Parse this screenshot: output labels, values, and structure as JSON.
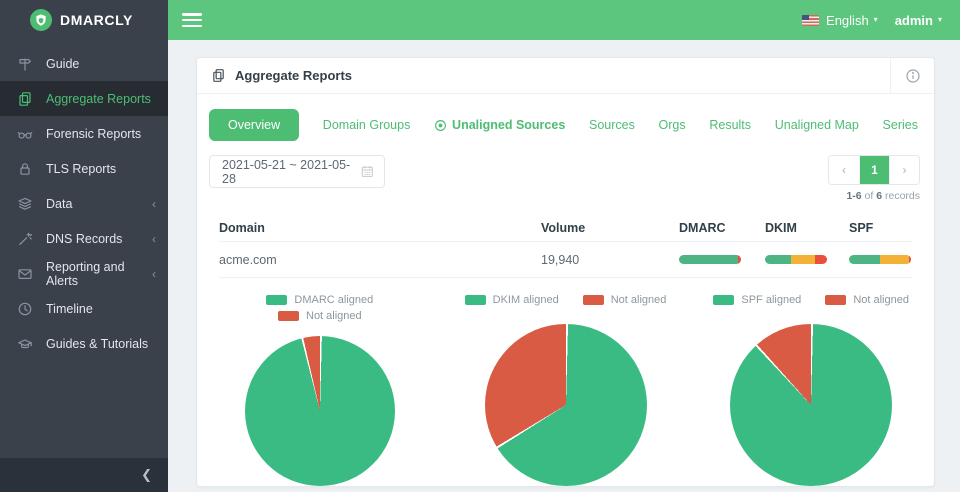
{
  "brand": {
    "name": "DMARCLY"
  },
  "topbar": {
    "language": "English",
    "user": "admin"
  },
  "icons": {
    "caret_down": "▾",
    "chevron_left": "‹",
    "chevron_right": "›",
    "collapse": "❮"
  },
  "sidebar": {
    "items": [
      {
        "label": "Guide"
      },
      {
        "label": "Aggregate Reports",
        "active": true
      },
      {
        "label": "Forensic Reports"
      },
      {
        "label": "TLS Reports"
      },
      {
        "label": "Data",
        "expandable": true
      },
      {
        "label": "DNS Records",
        "expandable": true
      },
      {
        "label": "Reporting and Alerts",
        "expandable": true
      },
      {
        "label": "Timeline"
      },
      {
        "label": "Guides & Tutorials"
      }
    ]
  },
  "card": {
    "title": "Aggregate Reports"
  },
  "tabs": [
    {
      "label": "Overview",
      "active": true
    },
    {
      "label": "Domain Groups"
    },
    {
      "label": "Unaligned Sources",
      "highlighted": true
    },
    {
      "label": "Sources"
    },
    {
      "label": "Orgs"
    },
    {
      "label": "Results"
    },
    {
      "label": "Unaligned Map"
    },
    {
      "label": "Series"
    }
  ],
  "filters": {
    "date_range": "2021-05-21 ~ 2021-05-28"
  },
  "pagination": {
    "page": "1",
    "range": "1-6",
    "of_label": " of ",
    "total": "6",
    "records_label": " records"
  },
  "table": {
    "headers": [
      "Domain",
      "Volume",
      "DMARC",
      "DKIM",
      "SPF"
    ],
    "rows": [
      {
        "domain": "acme.com",
        "volume": "19,940",
        "bars": {
          "dmarc": [
            [
              "#4cb583",
              95
            ],
            [
              "#ea4f3d",
              5
            ]
          ],
          "dkim": [
            [
              "#4cb583",
              42
            ],
            [
              "#f2b137",
              38
            ],
            [
              "#ea4f3d",
              20
            ]
          ],
          "spf": [
            [
              "#4cb583",
              50
            ],
            [
              "#f2b137",
              47
            ],
            [
              "#ea4f3d",
              3
            ]
          ]
        }
      }
    ]
  },
  "chart_data": [
    {
      "type": "pie",
      "labels": [
        "DMARC aligned",
        "Not aligned"
      ],
      "values": [
        96,
        4
      ],
      "colors": [
        "#3abb83",
        "#d95b43"
      ],
      "legend_position": "top-stacked"
    },
    {
      "type": "pie",
      "labels": [
        "DKIM aligned",
        "Not aligned"
      ],
      "values": [
        66,
        34
      ],
      "colors": [
        "#3abb83",
        "#d95b43"
      ],
      "legend_position": "top"
    },
    {
      "type": "pie",
      "labels": [
        "SPF aligned",
        "Not aligned"
      ],
      "values": [
        88,
        12
      ],
      "colors": [
        "#3abb83",
        "#d95b43"
      ],
      "legend_position": "top"
    }
  ],
  "colors": {
    "accent_green": "#4dbd74",
    "topbar_green": "#5cc57e",
    "pie_green": "#3abb83",
    "pie_red": "#d95b43",
    "bar_orange": "#f2b137",
    "bar_red": "#ea4f3d"
  }
}
